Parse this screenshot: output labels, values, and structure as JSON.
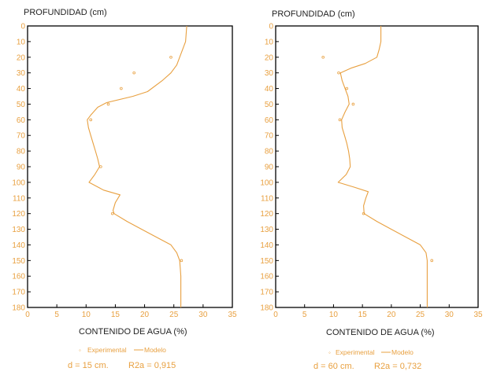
{
  "colors": {
    "series": "#E8A040",
    "text_dark": "#222222",
    "axis": "#000000"
  },
  "chart_data": [
    {
      "type": "line",
      "ylabel": "PROFUNDIDAD (cm)",
      "xlabel": "CONTENIDO DE AGUA (%)",
      "xlim": [
        0,
        35
      ],
      "ylim": [
        180,
        0
      ],
      "y_inverted": true,
      "x_ticks": [
        "0",
        "5",
        "10",
        "15",
        "20",
        "25",
        "30",
        "35"
      ],
      "y_ticks": [
        "0",
        "10",
        "20",
        "30",
        "40",
        "50",
        "60",
        "70",
        "80",
        "90",
        "100",
        "110",
        "120",
        "130",
        "140",
        "150",
        "160",
        "170",
        "180"
      ],
      "legend_experimental": "Experimental",
      "legend_model": "Modelo",
      "param_d": "d = 15 cm.",
      "param_r2": "R2a = 0,915",
      "series": [
        {
          "name": "Modelo",
          "style": "line",
          "points": [
            [
              27.2,
              0
            ],
            [
              27,
              10
            ],
            [
              26,
              20
            ],
            [
              25.5,
              25
            ],
            [
              24.5,
              30
            ],
            [
              23,
              35
            ],
            [
              20.5,
              42
            ],
            [
              18,
              45
            ],
            [
              13.5,
              49
            ],
            [
              12,
              52
            ],
            [
              10.8,
              57
            ],
            [
              10.2,
              60
            ],
            [
              10.4,
              65
            ],
            [
              10.8,
              70
            ],
            [
              11.2,
              75
            ],
            [
              11.6,
              80
            ],
            [
              12,
              85
            ],
            [
              12.3,
              90
            ],
            [
              11.5,
              95
            ],
            [
              10.5,
              100
            ],
            [
              13,
              105
            ],
            [
              15.8,
              108
            ],
            [
              15,
              113
            ],
            [
              14.6,
              118
            ],
            [
              14.8,
              120
            ],
            [
              17,
              125
            ],
            [
              19.5,
              130
            ],
            [
              22,
              135
            ],
            [
              24.5,
              140
            ],
            [
              25.5,
              145
            ],
            [
              26,
              150
            ],
            [
              26.1,
              155
            ],
            [
              26.2,
              160
            ],
            [
              26.2,
              170
            ],
            [
              26.2,
              180
            ]
          ]
        },
        {
          "name": "Experimental",
          "style": "markers",
          "points": [
            [
              24.5,
              20
            ],
            [
              18.2,
              30
            ],
            [
              16,
              40
            ],
            [
              13.8,
              50
            ],
            [
              10.8,
              60
            ],
            [
              12.5,
              90
            ],
            [
              14.5,
              120
            ],
            [
              26.3,
              150
            ]
          ]
        }
      ]
    },
    {
      "type": "line",
      "ylabel": "PROFUNDIDAD (cm)",
      "xlabel": "CONTENIDO DE AGUA (%)",
      "xlim": [
        0,
        35
      ],
      "ylim": [
        180,
        0
      ],
      "y_inverted": true,
      "x_ticks": [
        "0",
        "5",
        "10",
        "15",
        "20",
        "25",
        "30",
        "35"
      ],
      "y_ticks": [
        "0",
        "10",
        "20",
        "30",
        "40",
        "50",
        "60",
        "70",
        "80",
        "90",
        "100",
        "110",
        "120",
        "130",
        "140",
        "150",
        "160",
        "170",
        "180"
      ],
      "legend_experimental": "Experimental",
      "legend_model": "Modelo",
      "param_d": "d = 60 cm.",
      "param_r2": "R2a = 0,732",
      "series": [
        {
          "name": "Modelo",
          "style": "line",
          "points": [
            [
              18.2,
              0
            ],
            [
              18.2,
              10
            ],
            [
              17.9,
              15
            ],
            [
              17.5,
              20
            ],
            [
              15.5,
              24
            ],
            [
              13,
              27
            ],
            [
              11.2,
              30
            ],
            [
              11.5,
              35
            ],
            [
              12,
              40
            ],
            [
              12.5,
              45
            ],
            [
              12.7,
              50
            ],
            [
              12,
              55
            ],
            [
              11.4,
              60
            ],
            [
              11.5,
              65
            ],
            [
              11.9,
              70
            ],
            [
              12.3,
              75
            ],
            [
              12.6,
              80
            ],
            [
              12.8,
              85
            ],
            [
              12.9,
              90
            ],
            [
              12.2,
              95
            ],
            [
              10.8,
              100
            ],
            [
              13.5,
              103
            ],
            [
              16,
              106
            ],
            [
              15.6,
              110
            ],
            [
              15.2,
              115
            ],
            [
              15.3,
              120
            ],
            [
              17.5,
              125
            ],
            [
              20,
              130
            ],
            [
              22.5,
              135
            ],
            [
              25,
              140
            ],
            [
              26,
              145
            ],
            [
              26.2,
              150
            ],
            [
              26.2,
              160
            ],
            [
              26.2,
              170
            ],
            [
              26.2,
              180
            ]
          ]
        },
        {
          "name": "Experimental",
          "style": "markers",
          "points": [
            [
              8.2,
              20
            ],
            [
              10.9,
              30
            ],
            [
              12.3,
              40
            ],
            [
              13.4,
              50
            ],
            [
              11.1,
              60
            ],
            [
              15.2,
              120
            ],
            [
              27,
              150
            ]
          ]
        }
      ]
    }
  ]
}
